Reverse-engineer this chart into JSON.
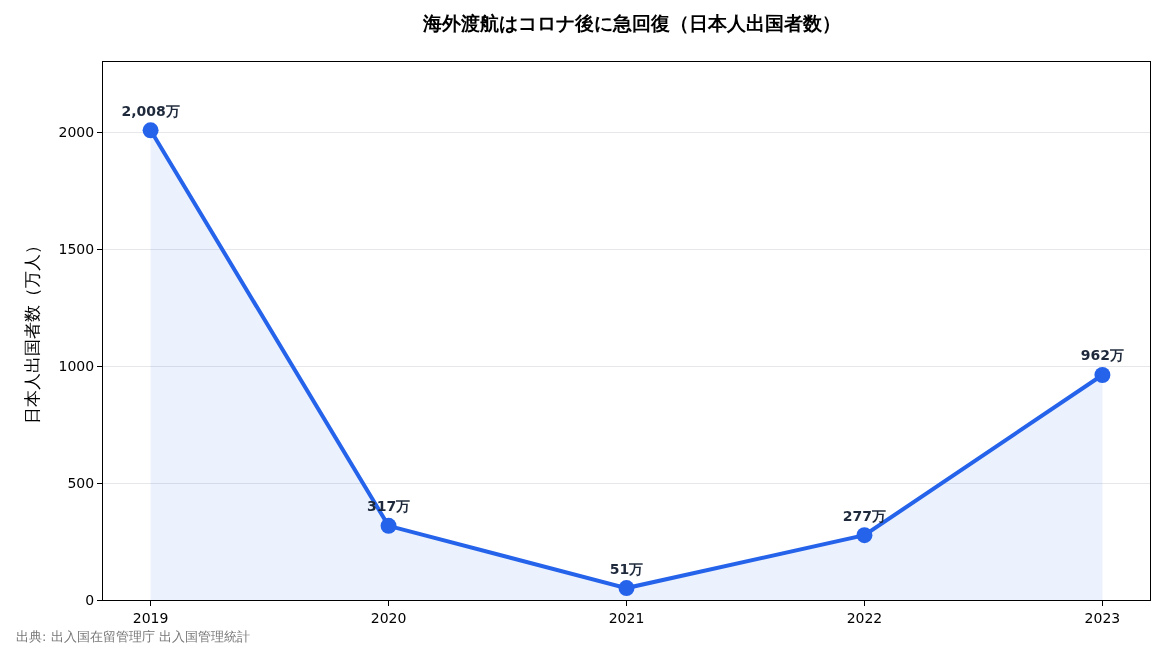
{
  "chart_data": {
    "type": "area",
    "title": "海外渡航はコロナ後に急回復（日本人出国者数）",
    "ylabel": "日本人出国者数（万人）",
    "x": [
      2019,
      2020,
      2021,
      2022,
      2023
    ],
    "series": [
      {
        "color": "#2563eb",
        "values": [
          2008,
          317,
          51,
          277,
          962
        ],
        "value_labels": [
          "2,008万",
          "317万",
          "51万",
          "277万",
          "962万"
        ]
      }
    ],
    "xlim": [
      2018.8,
      2023.2
    ],
    "xticks": [
      2019,
      2020,
      2021,
      2022,
      2023
    ],
    "ylim": [
      0,
      2300
    ],
    "yticks": [
      0,
      500,
      1000,
      1500,
      2000
    ],
    "grid": "y",
    "marker": "circle",
    "line_style": "solid",
    "annotations": [
      "出典: 出入国在留管理庁 出入国管理統計"
    ]
  }
}
